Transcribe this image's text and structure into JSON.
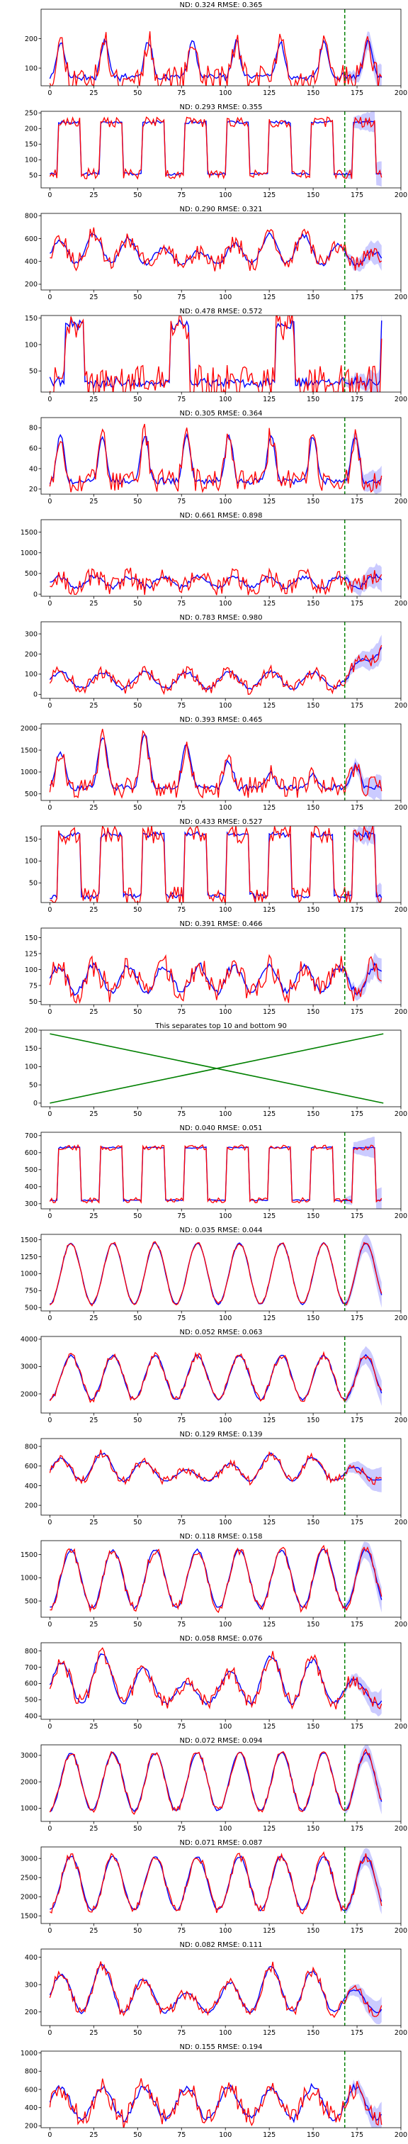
{
  "colors": {
    "actual": "#ff0000",
    "forecast": "#0000ff",
    "band": "#8c8cff",
    "split": "#008000",
    "divider": "#008000",
    "axis": "#000000"
  },
  "chart_data": [
    {
      "type": "line",
      "title": "ND:  0.324 RMSE:  0.365",
      "x_range": [
        -5,
        200
      ],
      "xticks": [
        0,
        25,
        50,
        75,
        100,
        125,
        150,
        175,
        200
      ],
      "ylim": [
        40,
        300
      ],
      "yticks": [
        100,
        200
      ],
      "forecast_start": 168,
      "seed": 11,
      "pattern": "spiky",
      "base": 70,
      "amp": 120,
      "period": 25,
      "noise": 0.35
    },
    {
      "type": "line",
      "title": "ND:  0.293 RMSE:  0.355",
      "x_range": [
        -5,
        200
      ],
      "xticks": [
        0,
        25,
        50,
        75,
        100,
        125,
        150,
        175,
        200
      ],
      "ylim": [
        10,
        255
      ],
      "yticks": [
        50,
        100,
        150,
        200,
        250
      ],
      "forecast_start": 168,
      "seed": 23,
      "pattern": "square",
      "base": 55,
      "amp": 165,
      "period": 24,
      "noise": 0.1
    },
    {
      "type": "line",
      "title": "ND:  0.290 RMSE:  0.321",
      "x_range": [
        -5,
        200
      ],
      "xticks": [
        0,
        25,
        50,
        75,
        100,
        125,
        150,
        175,
        200
      ],
      "ylim": [
        150,
        820
      ],
      "yticks": [
        200,
        400,
        600,
        800
      ],
      "forecast_start": 168,
      "seed": 37,
      "pattern": "wave",
      "base": 380,
      "amp": 260,
      "period": 20,
      "noise": 0.3
    },
    {
      "type": "line",
      "title": "ND:  0.478 RMSE:  0.572",
      "x_range": [
        -5,
        200
      ],
      "xticks": [
        0,
        25,
        50,
        75,
        100,
        125,
        150,
        175,
        200
      ],
      "ylim": [
        10,
        155
      ],
      "yticks": [
        50,
        100,
        150
      ],
      "forecast_start": 168,
      "seed": 41,
      "pattern": "bursts",
      "base": 28,
      "amp": 110,
      "period": 60,
      "noise": 0.3
    },
    {
      "type": "line",
      "title": "ND:  0.305 RMSE:  0.364",
      "x_range": [
        -5,
        200
      ],
      "xticks": [
        0,
        25,
        50,
        75,
        100,
        125,
        150,
        175,
        200
      ],
      "ylim": [
        15,
        90
      ],
      "yticks": [
        20,
        40,
        60,
        80
      ],
      "forecast_start": 168,
      "seed": 53,
      "pattern": "spiky",
      "base": 28,
      "amp": 45,
      "period": 24,
      "noise": 0.25
    },
    {
      "type": "line",
      "title": "ND:  0.661 RMSE:  0.898",
      "x_range": [
        -5,
        200
      ],
      "xticks": [
        0,
        25,
        50,
        75,
        100,
        125,
        150,
        175,
        200
      ],
      "ylim": [
        -50,
        1800
      ],
      "yticks": [
        0,
        500,
        1000,
        1500
      ],
      "forecast_start": 168,
      "seed": 67,
      "pattern": "noisy",
      "base": 300,
      "amp": 250,
      "period": 20,
      "noise": 0.9
    },
    {
      "type": "line",
      "title": "ND:  0.783 RMSE:  0.980",
      "x_range": [
        -5,
        200
      ],
      "xticks": [
        0,
        25,
        50,
        75,
        100,
        125,
        150,
        175,
        200
      ],
      "ylim": [
        -20,
        360
      ],
      "yticks": [
        0,
        100,
        200,
        300
      ],
      "forecast_start": 168,
      "seed": 71,
      "pattern": "rising",
      "base": 30,
      "amp": 80,
      "period": 24,
      "noise": 0.4
    },
    {
      "type": "line",
      "title": "ND:  0.393 RMSE:  0.465",
      "x_range": [
        -5,
        200
      ],
      "xticks": [
        0,
        25,
        50,
        75,
        100,
        125,
        150,
        175,
        200
      ],
      "ylim": [
        350,
        2100
      ],
      "yticks": [
        500,
        1000,
        1500,
        2000
      ],
      "forecast_start": 168,
      "seed": 83,
      "pattern": "peaks",
      "base": 650,
      "amp": 1200,
      "period": 24,
      "noise": 0.2
    },
    {
      "type": "line",
      "title": "ND:  0.433 RMSE:  0.527",
      "x_range": [
        -5,
        200
      ],
      "xticks": [
        0,
        25,
        50,
        75,
        100,
        125,
        150,
        175,
        200
      ],
      "ylim": [
        5,
        180
      ],
      "yticks": [
        50,
        100,
        150
      ],
      "forecast_start": 168,
      "seed": 97,
      "pattern": "square",
      "base": 20,
      "amp": 140,
      "period": 24,
      "noise": 0.15
    },
    {
      "type": "line",
      "title": "ND:  0.391 RMSE:  0.466",
      "x_range": [
        -5,
        200
      ],
      "xticks": [
        0,
        25,
        50,
        75,
        100,
        125,
        150,
        175,
        200
      ],
      "ylim": [
        45,
        165
      ],
      "yticks": [
        50,
        75,
        100,
        125,
        150
      ],
      "forecast_start": 168,
      "seed": 101,
      "pattern": "noisy",
      "base": 85,
      "amp": 40,
      "period": 20,
      "noise": 0.5
    },
    {
      "type": "line",
      "title": "This separates top 10 and bottom 90",
      "x_range": [
        -5,
        200
      ],
      "xticks": [
        0,
        25,
        50,
        75,
        100,
        125,
        150,
        175,
        200
      ],
      "ylim": [
        -10,
        200
      ],
      "yticks": [
        0,
        50,
        100,
        150,
        200
      ],
      "pattern": "cross",
      "lines": [
        {
          "x": [
            0,
            190
          ],
          "y": [
            0,
            190
          ]
        },
        {
          "x": [
            0,
            190
          ],
          "y": [
            190,
            0
          ]
        }
      ]
    },
    {
      "type": "line",
      "title": "ND:  0.040 RMSE:  0.051",
      "x_range": [
        -5,
        200
      ],
      "xticks": [
        0,
        25,
        50,
        75,
        100,
        125,
        150,
        175,
        200
      ],
      "ylim": [
        270,
        720
      ],
      "yticks": [
        300,
        400,
        500,
        600,
        700
      ],
      "forecast_start": 168,
      "seed": 113,
      "pattern": "square",
      "base": 320,
      "amp": 310,
      "period": 24,
      "noise": 0.05
    },
    {
      "type": "line",
      "title": "ND:  0.035 RMSE:  0.044",
      "x_range": [
        -5,
        200
      ],
      "xticks": [
        0,
        25,
        50,
        75,
        100,
        125,
        150,
        175,
        200
      ],
      "ylim": [
        450,
        1580
      ],
      "yticks": [
        500,
        750,
        1000,
        1250,
        1500
      ],
      "forecast_start": 168,
      "seed": 127,
      "pattern": "smooth",
      "base": 550,
      "amp": 900,
      "period": 24,
      "noise": 0.03
    },
    {
      "type": "line",
      "title": "ND:  0.052 RMSE:  0.063",
      "x_range": [
        -5,
        200
      ],
      "xticks": [
        0,
        25,
        50,
        75,
        100,
        125,
        150,
        175,
        200
      ],
      "ylim": [
        1300,
        4100
      ],
      "yticks": [
        2000,
        3000,
        4000
      ],
      "forecast_start": 168,
      "seed": 131,
      "pattern": "smooth",
      "base": 1800,
      "amp": 1600,
      "period": 24,
      "noise": 0.08
    },
    {
      "type": "line",
      "title": "ND:  0.129 RMSE:  0.139",
      "x_range": [
        -5,
        200
      ],
      "xticks": [
        0,
        25,
        50,
        75,
        100,
        125,
        150,
        175,
        200
      ],
      "ylim": [
        100,
        880
      ],
      "yticks": [
        200,
        400,
        600,
        800
      ],
      "forecast_start": 168,
      "seed": 139,
      "pattern": "wave",
      "base": 450,
      "amp": 280,
      "period": 24,
      "noise": 0.15
    },
    {
      "type": "line",
      "title": "ND:  0.118 RMSE:  0.158",
      "x_range": [
        -5,
        200
      ],
      "xticks": [
        0,
        25,
        50,
        75,
        100,
        125,
        150,
        175,
        200
      ],
      "ylim": [
        150,
        1800
      ],
      "yticks": [
        500,
        1000,
        1500
      ],
      "forecast_start": 168,
      "seed": 149,
      "pattern": "smooth",
      "base": 350,
      "amp": 1250,
      "period": 24,
      "noise": 0.08
    },
    {
      "type": "line",
      "title": "ND:  0.058 RMSE:  0.076",
      "x_range": [
        -5,
        200
      ],
      "xticks": [
        0,
        25,
        50,
        75,
        100,
        125,
        150,
        175,
        200
      ],
      "ylim": [
        380,
        850
      ],
      "yticks": [
        400,
        500,
        600,
        700,
        800
      ],
      "forecast_start": 168,
      "seed": 151,
      "pattern": "wave",
      "base": 480,
      "amp": 300,
      "period": 24,
      "noise": 0.15
    },
    {
      "type": "line",
      "title": "ND:  0.072 RMSE:  0.094",
      "x_range": [
        -5,
        200
      ],
      "xticks": [
        0,
        25,
        50,
        75,
        100,
        125,
        150,
        175,
        200
      ],
      "ylim": [
        500,
        3400
      ],
      "yticks": [
        1000,
        2000,
        3000
      ],
      "forecast_start": 168,
      "seed": 163,
      "pattern": "smooth",
      "base": 900,
      "amp": 2200,
      "period": 24,
      "noise": 0.06
    },
    {
      "type": "line",
      "title": "ND:  0.071 RMSE:  0.087",
      "x_range": [
        -5,
        200
      ],
      "xticks": [
        0,
        25,
        50,
        75,
        100,
        125,
        150,
        175,
        200
      ],
      "ylim": [
        1300,
        3300
      ],
      "yticks": [
        1500,
        2000,
        2500,
        3000
      ],
      "forecast_start": 168,
      "seed": 173,
      "pattern": "smooth",
      "base": 1650,
      "amp": 1400,
      "period": 24,
      "noise": 0.08
    },
    {
      "type": "line",
      "title": "ND:  0.082 RMSE:  0.111",
      "x_range": [
        -5,
        200
      ],
      "xticks": [
        0,
        25,
        50,
        75,
        100,
        125,
        150,
        175,
        200
      ],
      "ylim": [
        150,
        430
      ],
      "yticks": [
        200,
        300,
        400
      ],
      "forecast_start": 168,
      "seed": 181,
      "pattern": "wave",
      "base": 200,
      "amp": 170,
      "period": 24,
      "noise": 0.12
    },
    {
      "type": "line",
      "title": "ND:  0.155 RMSE:  0.194",
      "x_range": [
        -5,
        200
      ],
      "xticks": [
        0,
        25,
        50,
        75,
        100,
        125,
        150,
        175,
        200
      ],
      "ylim": [
        180,
        1020
      ],
      "yticks": [
        200,
        400,
        600,
        800,
        1000
      ],
      "forecast_start": 168,
      "seed": 191,
      "pattern": "noisy",
      "base": 450,
      "amp": 350,
      "period": 24,
      "noise": 0.35
    }
  ]
}
